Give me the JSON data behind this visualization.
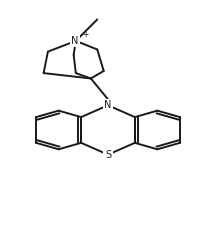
{
  "bg_color": "#ffffff",
  "line_color": "#1a1a1a",
  "line_width": 1.4,
  "font_size": 7.0,
  "fig_width": 2.16,
  "fig_height": 2.52,
  "dpi": 100,
  "xlim": [
    0,
    10
  ],
  "ylim": [
    0,
    11.67
  ]
}
